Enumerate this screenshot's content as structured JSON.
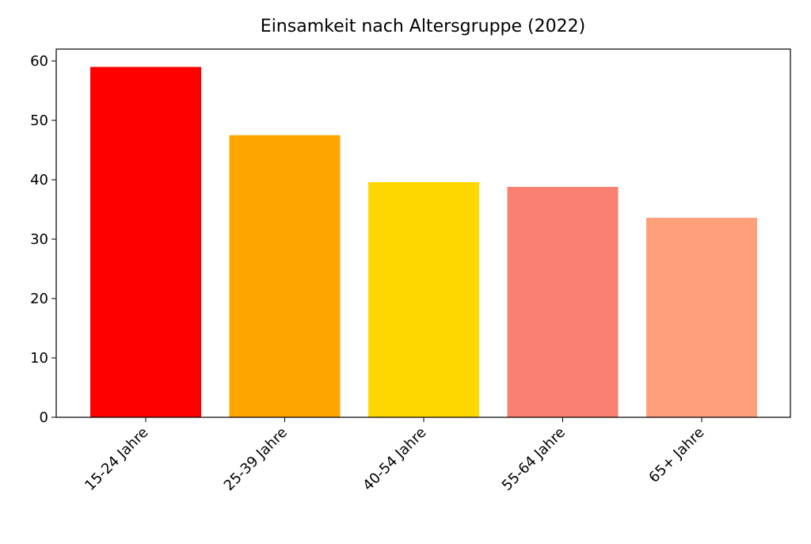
{
  "chart_data": {
    "type": "bar",
    "title": "Einsamkeit nach Altersgruppe (2022)",
    "categories": [
      "15-24 Jahre",
      "25-39 Jahre",
      "40-54 Jahre",
      "55-64 Jahre",
      "65+ Jahre"
    ],
    "values": [
      59,
      47.5,
      39.6,
      38.8,
      33.6
    ],
    "colors": [
      "#ff0000",
      "#ffa500",
      "#ffd700",
      "#fa8072",
      "#ffa07a"
    ],
    "ylim": [
      0,
      62
    ],
    "yticks": [
      0,
      10,
      20,
      30,
      40,
      50,
      60
    ],
    "grid": false
  }
}
